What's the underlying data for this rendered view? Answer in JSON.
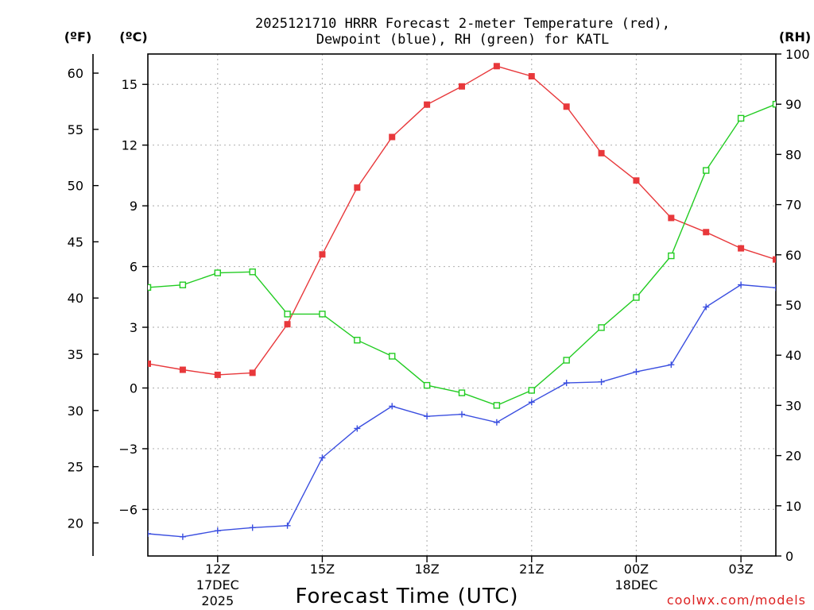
{
  "chart_data": {
    "type": "line",
    "title_line1": "2025121710 HRRR Forecast 2-meter Temperature (red),",
    "title_line2": "Dewpoint (blue), RH (green) for KATL",
    "xlabel": "Forecast Time (UTC)",
    "credit": "coolwx.com/models",
    "unit_f": "(ºF)",
    "unit_c": "(ºC)",
    "unit_rh": "(RH)",
    "x_hours": [
      10,
      11,
      12,
      13,
      14,
      15,
      16,
      17,
      18,
      19,
      20,
      21,
      22,
      23,
      24,
      25,
      26,
      27,
      28
    ],
    "xlim": [
      10,
      28
    ],
    "ylim_c": [
      -8.3,
      16.5
    ],
    "ylim_rh": [
      0,
      100
    ],
    "x_ticks": [
      {
        "hour": 12,
        "label": "12Z",
        "sub1": "17DEC",
        "sub2": "2025"
      },
      {
        "hour": 15,
        "label": "15Z",
        "sub1": "",
        "sub2": ""
      },
      {
        "hour": 18,
        "label": "18Z",
        "sub1": "",
        "sub2": ""
      },
      {
        "hour": 21,
        "label": "21Z",
        "sub1": "",
        "sub2": ""
      },
      {
        "hour": 24,
        "label": "00Z",
        "sub1": "18DEC",
        "sub2": ""
      },
      {
        "hour": 27,
        "label": "03Z",
        "sub1": "",
        "sub2": ""
      }
    ],
    "c_ticks": [
      15,
      12,
      9,
      6,
      3,
      0,
      -3,
      -6
    ],
    "c_tick_labels": [
      "15",
      "12",
      "9",
      "6",
      "3",
      "0",
      "−3",
      "−6"
    ],
    "f_ticks": [
      60,
      55,
      50,
      45,
      40,
      35,
      30,
      25,
      20
    ],
    "rh_ticks": [
      100,
      90,
      80,
      70,
      60,
      50,
      40,
      30,
      20,
      10,
      0
    ],
    "series": [
      {
        "name": "Temperature",
        "unit": "C",
        "color": "#e8383b",
        "marker": "filled-square",
        "values": [
          1.2,
          0.9,
          0.65,
          0.75,
          3.15,
          6.6,
          9.9,
          12.4,
          14.0,
          14.9,
          15.9,
          15.4,
          13.9,
          11.6,
          10.25,
          8.4,
          7.7,
          6.9,
          6.35
        ]
      },
      {
        "name": "Dewpoint",
        "unit": "C",
        "color": "#3a4ee0",
        "marker": "plus",
        "values": [
          -7.2,
          -7.35,
          -7.05,
          -6.9,
          -6.8,
          -3.45,
          -2.0,
          -0.9,
          -1.4,
          -1.3,
          -1.7,
          -0.7,
          0.25,
          0.3,
          0.8,
          1.15,
          4.0,
          5.1,
          4.95
        ]
      },
      {
        "name": "RH",
        "unit": "%",
        "color": "#22cc22",
        "marker": "open-square",
        "values": [
          53.5,
          54.0,
          56.4,
          56.6,
          48.2,
          48.2,
          43.0,
          39.8,
          34.0,
          32.5,
          30.0,
          33.0,
          39.0,
          45.5,
          51.5,
          59.8,
          76.8,
          87.2,
          90.0
        ]
      }
    ]
  }
}
